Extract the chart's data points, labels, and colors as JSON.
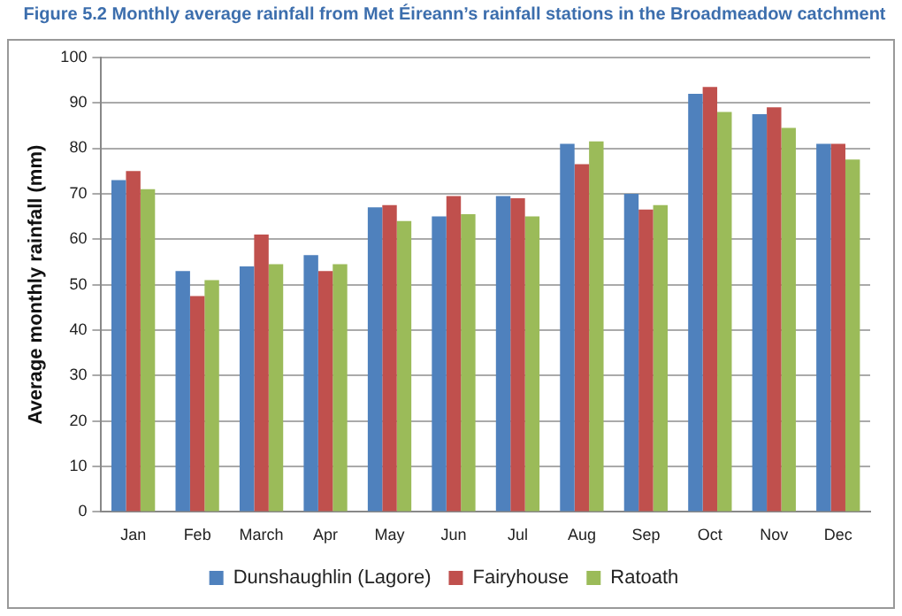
{
  "chart_data": {
    "type": "bar",
    "title": "Figure 5.2  Monthly average rainfall from Met Éireann’s rainfall stations in the Broadmeadow catchment",
    "ylabel": "Average monthly rainfall (mm)",
    "categories": [
      "Jan",
      "Feb",
      "March",
      "Apr",
      "May",
      "Jun",
      "Jul",
      "Aug",
      "Sep",
      "Oct",
      "Nov",
      "Dec"
    ],
    "series": [
      {
        "name": "Dunshaughlin (Lagore)",
        "color": "#4f81bd",
        "values": [
          73,
          53,
          54,
          56.5,
          67,
          65,
          69.5,
          81,
          70,
          92,
          87.5,
          81
        ]
      },
      {
        "name": "Fairyhouse",
        "color": "#c0504d",
        "values": [
          75,
          47.5,
          61,
          53,
          67.5,
          69.5,
          69,
          76.5,
          66.5,
          93.5,
          89,
          81
        ]
      },
      {
        "name": "Ratoath",
        "color": "#9bbb59",
        "values": [
          71,
          51,
          54.5,
          54.5,
          64,
          65.5,
          65,
          81.5,
          67.5,
          88,
          84.5,
          77.5
        ]
      }
    ],
    "ylim": [
      0,
      100
    ],
    "yticks": [
      0,
      10,
      20,
      30,
      40,
      50,
      60,
      70,
      80,
      90,
      100
    ],
    "grid": "y",
    "legend": "bottom"
  }
}
